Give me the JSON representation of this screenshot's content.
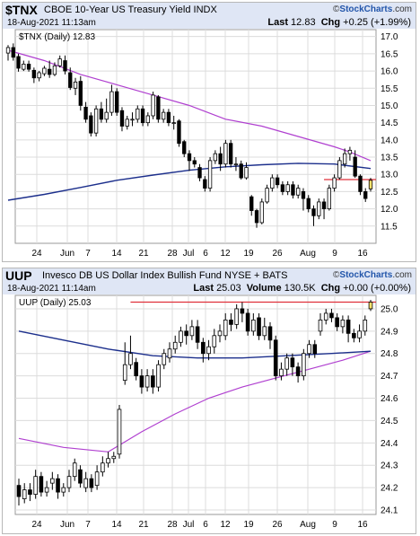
{
  "brand": {
    "prefix": "©",
    "name": "StockCharts",
    "suffix": ".com"
  },
  "colors": {
    "ma_long": "#1c2f8c",
    "ma_short": "#b040d0",
    "ref_line": "#e0303a",
    "last_box": "#ffe36e",
    "header_bg": "#dfe6f5",
    "grid": "#dcdcdc"
  },
  "panels": [
    {
      "symbol": "$TNX",
      "name": "CBOE 10-Year US Treasury Yield",
      "exchange": "INDX",
      "timestamp": "18-Aug-2021 11:13am",
      "last_label": "Last",
      "last_value": "12.83",
      "chg_label": "Chg",
      "chg_value": "+0.25 (+1.99%)",
      "legend": "$TNX (Daily) 12.83",
      "chart_data": {
        "type": "candlestick",
        "ylim": [
          11.0,
          17.2
        ],
        "y_ticks": [
          11.5,
          12.0,
          12.5,
          13.0,
          13.5,
          14.0,
          14.5,
          15.0,
          15.5,
          16.0,
          16.5,
          17.0
        ],
        "x_labels": [
          "24",
          "Jun",
          "7",
          "14",
          "21",
          "28",
          "Jul",
          "6",
          "12",
          "19",
          "26",
          "Aug",
          "9",
          "16"
        ],
        "candles": [
          [
            16.52,
            16.68,
            16.75,
            16.3
          ],
          [
            16.68,
            16.4,
            16.8,
            16.3
          ],
          [
            16.42,
            16.08,
            16.5,
            15.98
          ],
          [
            16.05,
            16.2,
            16.3,
            16.0
          ],
          [
            16.2,
            16.05,
            16.3,
            15.98
          ],
          [
            16.02,
            15.8,
            16.1,
            15.65
          ],
          [
            15.8,
            15.95,
            16.0,
            15.7
          ],
          [
            15.92,
            16.08,
            16.15,
            15.85
          ],
          [
            16.05,
            15.9,
            16.3,
            15.8
          ],
          [
            15.9,
            16.15,
            16.25,
            15.85
          ],
          [
            16.15,
            16.35,
            16.45,
            16.1
          ],
          [
            16.3,
            16.0,
            16.45,
            15.9
          ],
          [
            15.95,
            15.52,
            16.1,
            15.45
          ],
          [
            15.5,
            15.68,
            15.8,
            15.3
          ],
          [
            15.7,
            15.0,
            15.85,
            14.85
          ],
          [
            14.95,
            14.6,
            15.1,
            14.5
          ],
          [
            14.7,
            14.2,
            14.8,
            14.1
          ],
          [
            14.2,
            14.9,
            15.0,
            14.1
          ],
          [
            14.9,
            14.6,
            15.1,
            14.5
          ],
          [
            14.6,
            14.8,
            15.2,
            14.5
          ],
          [
            14.8,
            15.4,
            15.6,
            14.7
          ],
          [
            15.4,
            14.8,
            15.5,
            14.7
          ],
          [
            14.85,
            14.4,
            14.95,
            14.25
          ],
          [
            14.4,
            14.6,
            14.7,
            14.3
          ],
          [
            14.6,
            14.6,
            14.8,
            14.4
          ],
          [
            14.6,
            14.9,
            15.0,
            14.5
          ],
          [
            14.9,
            14.5,
            15.0,
            14.4
          ],
          [
            14.5,
            14.7,
            14.8,
            14.4
          ],
          [
            14.7,
            15.3,
            15.4,
            14.6
          ],
          [
            15.25,
            14.6,
            15.3,
            14.5
          ],
          [
            14.6,
            14.8,
            14.9,
            14.5
          ],
          [
            14.8,
            14.5,
            14.9,
            14.4
          ],
          [
            14.5,
            14.5,
            14.7,
            14.3
          ],
          [
            14.55,
            13.9,
            14.6,
            13.8
          ],
          [
            13.95,
            13.6,
            14.0,
            13.5
          ],
          [
            13.6,
            13.4,
            13.7,
            13.1
          ],
          [
            13.4,
            13.3,
            13.5,
            13.2
          ],
          [
            13.2,
            12.9,
            13.3,
            12.8
          ],
          [
            12.85,
            12.6,
            12.95,
            12.5
          ],
          [
            12.6,
            13.4,
            13.5,
            12.5
          ],
          [
            13.4,
            13.6,
            13.7,
            13.3
          ],
          [
            13.6,
            13.3,
            13.8,
            13.1
          ],
          [
            13.3,
            13.9,
            14.0,
            13.2
          ],
          [
            13.9,
            13.3,
            14.0,
            13.2
          ],
          [
            13.3,
            13.3,
            13.5,
            13.1
          ],
          [
            13.3,
            12.9,
            13.4,
            12.85
          ],
          [
            12.9,
            13.2,
            13.35,
            12.85
          ],
          [
            12.35,
            11.95,
            12.4,
            11.8
          ],
          [
            11.95,
            11.6,
            12.0,
            11.45
          ],
          [
            11.6,
            12.2,
            12.3,
            11.55
          ],
          [
            12.2,
            12.6,
            12.7,
            12.15
          ],
          [
            12.6,
            12.9,
            13.0,
            12.5
          ],
          [
            12.9,
            12.7,
            13.0,
            12.6
          ],
          [
            12.7,
            12.5,
            12.8,
            12.4
          ],
          [
            12.5,
            12.7,
            12.8,
            12.4
          ],
          [
            12.7,
            12.4,
            12.8,
            12.3
          ],
          [
            12.4,
            12.6,
            12.7,
            12.3
          ],
          [
            12.5,
            12.3,
            12.6,
            11.95
          ],
          [
            12.3,
            12.0,
            12.4,
            11.9
          ],
          [
            12.0,
            11.8,
            12.1,
            11.5
          ],
          [
            11.8,
            12.2,
            12.3,
            11.7
          ],
          [
            12.2,
            12.0,
            12.3,
            11.7
          ],
          [
            12.0,
            12.6,
            12.7,
            11.95
          ],
          [
            12.6,
            12.9,
            13.0,
            12.5
          ],
          [
            12.9,
            13.4,
            13.5,
            12.85
          ],
          [
            13.3,
            13.6,
            13.75,
            13.2
          ],
          [
            13.6,
            13.7,
            13.8,
            13.4
          ],
          [
            13.5,
            12.95,
            13.7,
            12.9
          ],
          [
            12.95,
            12.5,
            13.0,
            12.4
          ],
          [
            12.5,
            12.3,
            12.6,
            12.2
          ],
          [
            12.58,
            12.83,
            12.9,
            12.5
          ]
        ],
        "ma_long": [
          [
            0,
            12.25
          ],
          [
            7,
            12.42
          ],
          [
            14,
            12.62
          ],
          [
            21,
            12.83
          ],
          [
            28,
            12.98
          ],
          [
            35,
            13.12
          ],
          [
            42,
            13.22
          ],
          [
            49,
            13.28
          ],
          [
            56,
            13.32
          ],
          [
            63,
            13.3
          ],
          [
            70,
            13.17
          ]
        ],
        "ma_short": [
          [
            0,
            16.6
          ],
          [
            7,
            16.3
          ],
          [
            14,
            15.9
          ],
          [
            21,
            15.6
          ],
          [
            28,
            15.3
          ],
          [
            35,
            15.0
          ],
          [
            42,
            14.6
          ],
          [
            49,
            14.4
          ],
          [
            56,
            14.1
          ],
          [
            63,
            13.8
          ],
          [
            66,
            13.65
          ],
          [
            70,
            13.4
          ]
        ],
        "ref_line": {
          "value": 12.85,
          "from_index": 61
        }
      }
    },
    {
      "symbol": "UUP",
      "name": "Invesco DB US Dollar Index Bullish Fund",
      "exchange": "NYSE + BATS",
      "timestamp": "18-Aug-2021 11:14am",
      "last_label": "Last",
      "last_value": "25.03",
      "volume_label": "Volume",
      "volume_value": "130.5K",
      "chg_label": "Chg",
      "chg_value": "+0.00 (+0.00%)",
      "legend": "UUP (Daily) 25.03",
      "chart_data": {
        "type": "candlestick",
        "ylim": [
          24.08,
          25.06
        ],
        "y_ticks": [
          24.1,
          24.2,
          24.3,
          24.4,
          24.5,
          24.6,
          24.7,
          24.8,
          24.9,
          25.0
        ],
        "x_labels": [
          "24",
          "Jun",
          "7",
          "14",
          "21",
          "28",
          "Jul",
          "6",
          "12",
          "19",
          "26",
          "Aug",
          "9",
          "16"
        ],
        "candles": [
          [
            24.21,
            24.16,
            24.24,
            24.12
          ],
          [
            24.15,
            24.19,
            24.22,
            24.13
          ],
          [
            24.19,
            24.17,
            24.22,
            24.14
          ],
          [
            24.17,
            24.25,
            24.28,
            24.15
          ],
          [
            24.25,
            24.18,
            24.27,
            24.16
          ],
          [
            24.18,
            24.2,
            24.23,
            24.16
          ],
          [
            24.22,
            24.24,
            24.27,
            24.19
          ],
          [
            24.24,
            24.18,
            24.26,
            24.15
          ],
          [
            24.18,
            24.2,
            24.22,
            24.16
          ],
          [
            24.2,
            24.25,
            24.28,
            24.18
          ],
          [
            24.25,
            24.31,
            24.33,
            24.23
          ],
          [
            24.28,
            24.22,
            24.3,
            24.2
          ],
          [
            24.2,
            24.24,
            24.27,
            24.18
          ],
          [
            24.24,
            24.2,
            24.26,
            24.18
          ],
          [
            24.21,
            24.27,
            24.3,
            24.19
          ],
          [
            24.27,
            24.31,
            24.34,
            24.25
          ],
          [
            24.31,
            24.33,
            24.36,
            24.29
          ],
          [
            24.33,
            24.34,
            24.36,
            24.31
          ],
          [
            24.35,
            24.55,
            24.57,
            24.33
          ],
          [
            24.68,
            24.75,
            24.85,
            24.66
          ],
          [
            24.75,
            24.8,
            24.88,
            24.73
          ],
          [
            24.76,
            24.7,
            24.78,
            24.68
          ],
          [
            24.7,
            24.65,
            24.73,
            24.62
          ],
          [
            24.65,
            24.7,
            24.73,
            24.63
          ],
          [
            24.7,
            24.65,
            24.73,
            24.62
          ],
          [
            24.65,
            24.75,
            24.77,
            24.63
          ],
          [
            24.75,
            24.8,
            24.82,
            24.73
          ],
          [
            24.78,
            24.82,
            24.85,
            24.76
          ],
          [
            24.82,
            24.85,
            24.88,
            24.8
          ],
          [
            24.85,
            24.9,
            24.92,
            24.83
          ],
          [
            24.9,
            24.88,
            24.93,
            24.84
          ],
          [
            24.88,
            24.92,
            24.95,
            24.86
          ],
          [
            24.92,
            24.85,
            24.95,
            24.82
          ],
          [
            24.85,
            24.8,
            24.87,
            24.76
          ],
          [
            24.8,
            24.83,
            24.86,
            24.77
          ],
          [
            24.83,
            24.88,
            24.91,
            24.8
          ],
          [
            24.88,
            24.9,
            24.93,
            24.85
          ],
          [
            24.88,
            24.95,
            24.98,
            24.86
          ],
          [
            24.95,
            24.93,
            24.98,
            24.9
          ],
          [
            24.93,
            25.0,
            25.02,
            24.91
          ],
          [
            25.0,
            24.98,
            25.03,
            24.94
          ],
          [
            24.98,
            24.9,
            25.0,
            24.88
          ],
          [
            24.9,
            24.95,
            24.98,
            24.88
          ],
          [
            24.96,
            24.88,
            24.98,
            24.86
          ],
          [
            24.88,
            24.92,
            24.96,
            24.86
          ],
          [
            24.92,
            24.86,
            24.94,
            24.82
          ],
          [
            24.86,
            24.7,
            24.88,
            24.68
          ],
          [
            24.7,
            24.73,
            24.76,
            24.68
          ],
          [
            24.73,
            24.78,
            24.8,
            24.7
          ],
          [
            24.78,
            24.74,
            24.8,
            24.7
          ],
          [
            24.74,
            24.7,
            24.76,
            24.67
          ],
          [
            24.7,
            24.8,
            24.82,
            24.68
          ],
          [
            24.8,
            24.84,
            24.86,
            24.78
          ],
          [
            24.84,
            24.8,
            24.86,
            24.78
          ],
          [
            24.9,
            24.95,
            24.98,
            24.88
          ],
          [
            24.95,
            24.98,
            25.0,
            24.93
          ],
          [
            24.98,
            24.96,
            25.0,
            24.94
          ],
          [
            24.96,
            24.92,
            24.98,
            24.9
          ],
          [
            24.92,
            24.95,
            24.97,
            24.89
          ],
          [
            24.95,
            24.89,
            24.97,
            24.85
          ],
          [
            24.89,
            24.87,
            24.91,
            24.85
          ],
          [
            24.87,
            24.9,
            24.93,
            24.85
          ],
          [
            24.9,
            24.95,
            24.97,
            24.88
          ],
          [
            25.0,
            25.03,
            25.04,
            24.99
          ]
        ],
        "ma_long": [
          [
            0,
            24.9
          ],
          [
            8,
            24.86
          ],
          [
            16,
            24.82
          ],
          [
            24,
            24.79
          ],
          [
            32,
            24.78
          ],
          [
            40,
            24.78
          ],
          [
            48,
            24.79
          ],
          [
            56,
            24.8
          ],
          [
            63,
            24.81
          ]
        ],
        "ma_short": [
          [
            0,
            24.42
          ],
          [
            8,
            24.38
          ],
          [
            16,
            24.36
          ],
          [
            22,
            24.45
          ],
          [
            28,
            24.53
          ],
          [
            34,
            24.6
          ],
          [
            40,
            24.65
          ],
          [
            46,
            24.69
          ],
          [
            52,
            24.73
          ],
          [
            58,
            24.77
          ],
          [
            63,
            24.81
          ]
        ],
        "ref_line": {
          "value": 25.03,
          "from_index": 20
        }
      }
    }
  ]
}
